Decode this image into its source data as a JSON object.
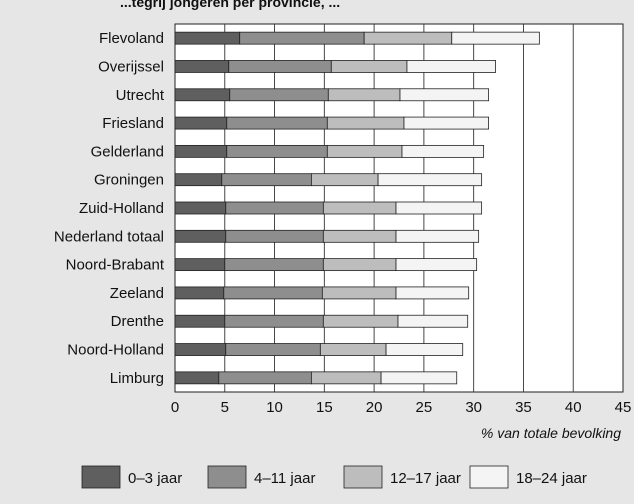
{
  "chart_data": {
    "type": "bar",
    "stacked": true,
    "orientation": "horizontal",
    "title": "",
    "title_fragment": "...tegrij jongeren per provincie, ...",
    "xlabel": "% van totale bevolking",
    "ylabel": "",
    "xlim": [
      0,
      45
    ],
    "x_ticks": [
      0,
      5,
      10,
      15,
      20,
      25,
      30,
      35,
      40,
      45
    ],
    "grid": "vertical",
    "legend_position": "bottom",
    "categories": [
      "Flevoland",
      "Overijssel",
      "Utrecht",
      "Friesland",
      "Gelderland",
      "Groningen",
      "Zuid-Holland",
      "Nederland totaal",
      "Noord-Brabant",
      "Zeeland",
      "Drenthe",
      "Noord-Holland",
      "Limburg"
    ],
    "series": [
      {
        "name": "0–3 jaar",
        "color": "#5f5f5f",
        "values": [
          6.5,
          5.4,
          5.5,
          5.2,
          5.2,
          4.7,
          5.1,
          5.1,
          5.0,
          4.9,
          5.0,
          5.1,
          4.4
        ]
      },
      {
        "name": "4–11 jaar",
        "color": "#8e8e8e",
        "values": [
          12.5,
          10.3,
          9.9,
          10.1,
          10.1,
          9.0,
          9.8,
          9.8,
          9.9,
          9.9,
          9.9,
          9.5,
          9.3
        ]
      },
      {
        "name": "12–17 jaar",
        "color": "#bdbdbd",
        "values": [
          8.8,
          7.6,
          7.2,
          7.7,
          7.5,
          6.7,
          7.3,
          7.3,
          7.3,
          7.4,
          7.5,
          6.6,
          7.0
        ]
      },
      {
        "name": "18–24 jaar",
        "color": "#f4f4f4",
        "values": [
          8.8,
          8.9,
          8.9,
          8.5,
          8.2,
          10.4,
          8.6,
          8.3,
          8.1,
          7.3,
          7.0,
          7.7,
          7.6
        ]
      }
    ]
  }
}
